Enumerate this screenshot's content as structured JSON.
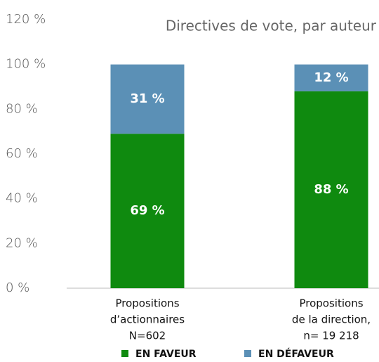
{
  "chart_data": {
    "type": "stacked_bar",
    "title": "Directives de vote, par auteur",
    "categories": [
      [
        "Propositions",
        "d’actionnaires",
        "N=602"
      ],
      [
        "Propositions",
        "de la direction,",
        "n= 19 218"
      ]
    ],
    "series": [
      {
        "name": "EN FAVEUR",
        "color": "#0f8a0f",
        "values": [
          69,
          88
        ],
        "value_labels": [
          "69 %",
          "88 %"
        ]
      },
      {
        "name": "EN DÉFAVEUR",
        "color": "#5b90b6",
        "values": [
          31,
          12
        ],
        "value_labels": [
          "31 %",
          "12 %"
        ]
      }
    ],
    "ylim": [
      0,
      120
    ],
    "yticks": [
      {
        "value": 0,
        "label": "0 %"
      },
      {
        "value": 20,
        "label": "20 %"
      },
      {
        "value": 40,
        "label": "40 %"
      },
      {
        "value": 60,
        "label": "60 %"
      },
      {
        "value": 80,
        "label": "80 %"
      },
      {
        "value": 100,
        "label": "100 %"
      },
      {
        "value": 120,
        "label": "120 %"
      }
    ],
    "legend": "bottom"
  }
}
